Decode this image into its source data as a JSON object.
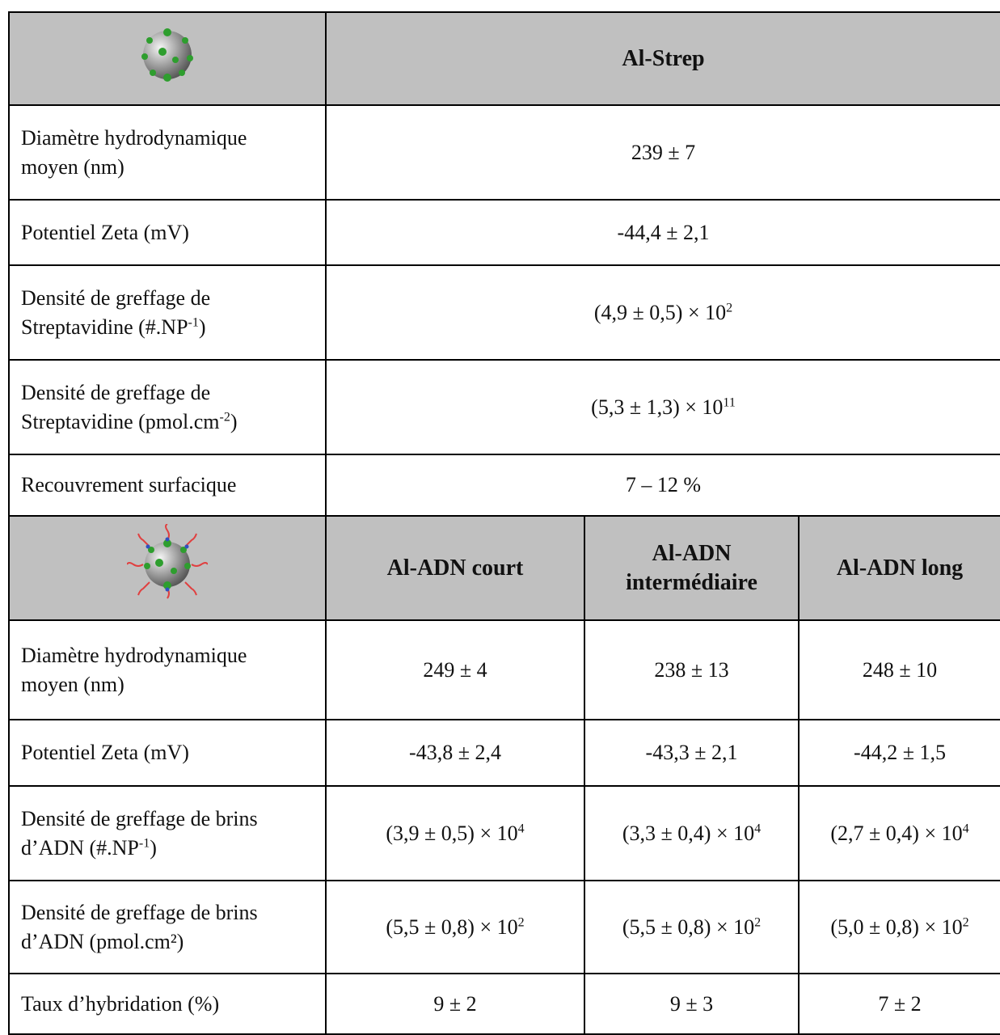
{
  "table1": {
    "header": "Al-Strep",
    "rows": [
      {
        "label": [
          "Diamètre hydrodynamique moyen (nm)"
        ],
        "value": [
          "239 ± 7"
        ]
      },
      {
        "label": [
          "Potentiel Zeta (mV)"
        ],
        "value": [
          "-44,4 ± 2,1"
        ]
      },
      {
        "label": [
          "Densité de greffage de Streptavidine (#.NP",
          {
            "sup": "-1"
          },
          ")"
        ],
        "value": [
          "(4,9 ± 0,5) × 10",
          {
            "sup": "2"
          }
        ]
      },
      {
        "label": [
          "Densité de greffage de Streptavidine (pmol.cm",
          {
            "sup": "-2"
          },
          ")"
        ],
        "value": [
          "(5,3 ± 1,3) × 10",
          {
            "sup": "11"
          }
        ]
      },
      {
        "label": [
          "Recouvrement surfacique"
        ],
        "value": [
          "7 – 12 %"
        ]
      }
    ]
  },
  "table2": {
    "headers": [
      "Al-ADN court",
      "Al-ADN intermédiaire",
      "Al-ADN long"
    ],
    "rows": [
      {
        "label": [
          "Diamètre hydrodynamique moyen (nm)"
        ],
        "values": [
          [
            "249 ± 4"
          ],
          [
            "238 ± 13"
          ],
          [
            "248 ± 10"
          ]
        ]
      },
      {
        "label": [
          "Potentiel Zeta (mV)"
        ],
        "values": [
          [
            "-43,8 ± 2,4"
          ],
          [
            "-43,3 ± 2,1"
          ],
          [
            "-44,2 ± 1,5"
          ]
        ]
      },
      {
        "label": [
          "Densité de greffage de brins d’ADN (#.NP",
          {
            "sup": "-1"
          },
          ")"
        ],
        "values": [
          [
            "(3,9 ± 0,5) × 10",
            {
              "sup": "4"
            }
          ],
          [
            "(3,3 ± 0,4) × 10",
            {
              "sup": "4"
            }
          ],
          [
            "(2,7 ± 0,4) × 10",
            {
              "sup": "4"
            }
          ]
        ]
      },
      {
        "label": [
          "Densité de greffage de brins d’ADN (pmol.cm²)"
        ],
        "values": [
          [
            "(5,5 ± 0,8) × 10",
            {
              "sup": "2"
            }
          ],
          [
            "(5,5 ± 0,8) × 10",
            {
              "sup": "2"
            }
          ],
          [
            "(5,0 ± 0,8) × 10",
            {
              "sup": "2"
            }
          ]
        ]
      },
      {
        "label": [
          "Taux d’hybridation (%)"
        ],
        "values": [
          [
            "9 ± 2"
          ],
          [
            "9 ± 3"
          ],
          [
            "7 ± 2"
          ]
        ]
      }
    ]
  }
}
